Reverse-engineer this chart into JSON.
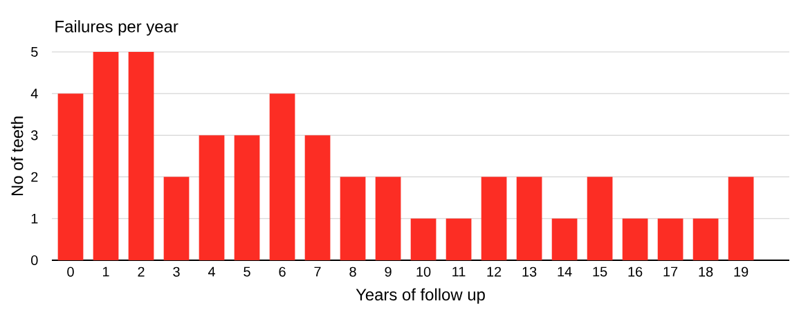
{
  "chart_data": {
    "type": "bar",
    "title": "Failures per year",
    "xlabel": "Years of follow up",
    "ylabel": "No of teeth",
    "categories": [
      "0",
      "1",
      "2",
      "3",
      "4",
      "5",
      "6",
      "7",
      "8",
      "9",
      "10",
      "11",
      "12",
      "13",
      "14",
      "15",
      "16",
      "17",
      "18",
      "19"
    ],
    "values": [
      4,
      5,
      5,
      2,
      3,
      3,
      4,
      3,
      2,
      2,
      1,
      1,
      2,
      2,
      1,
      2,
      1,
      1,
      1,
      2
    ],
    "color": "#fc2d24",
    "ylim": [
      0,
      5
    ],
    "yticks": [
      0,
      1,
      2,
      3,
      4,
      5
    ],
    "grid": "y"
  }
}
